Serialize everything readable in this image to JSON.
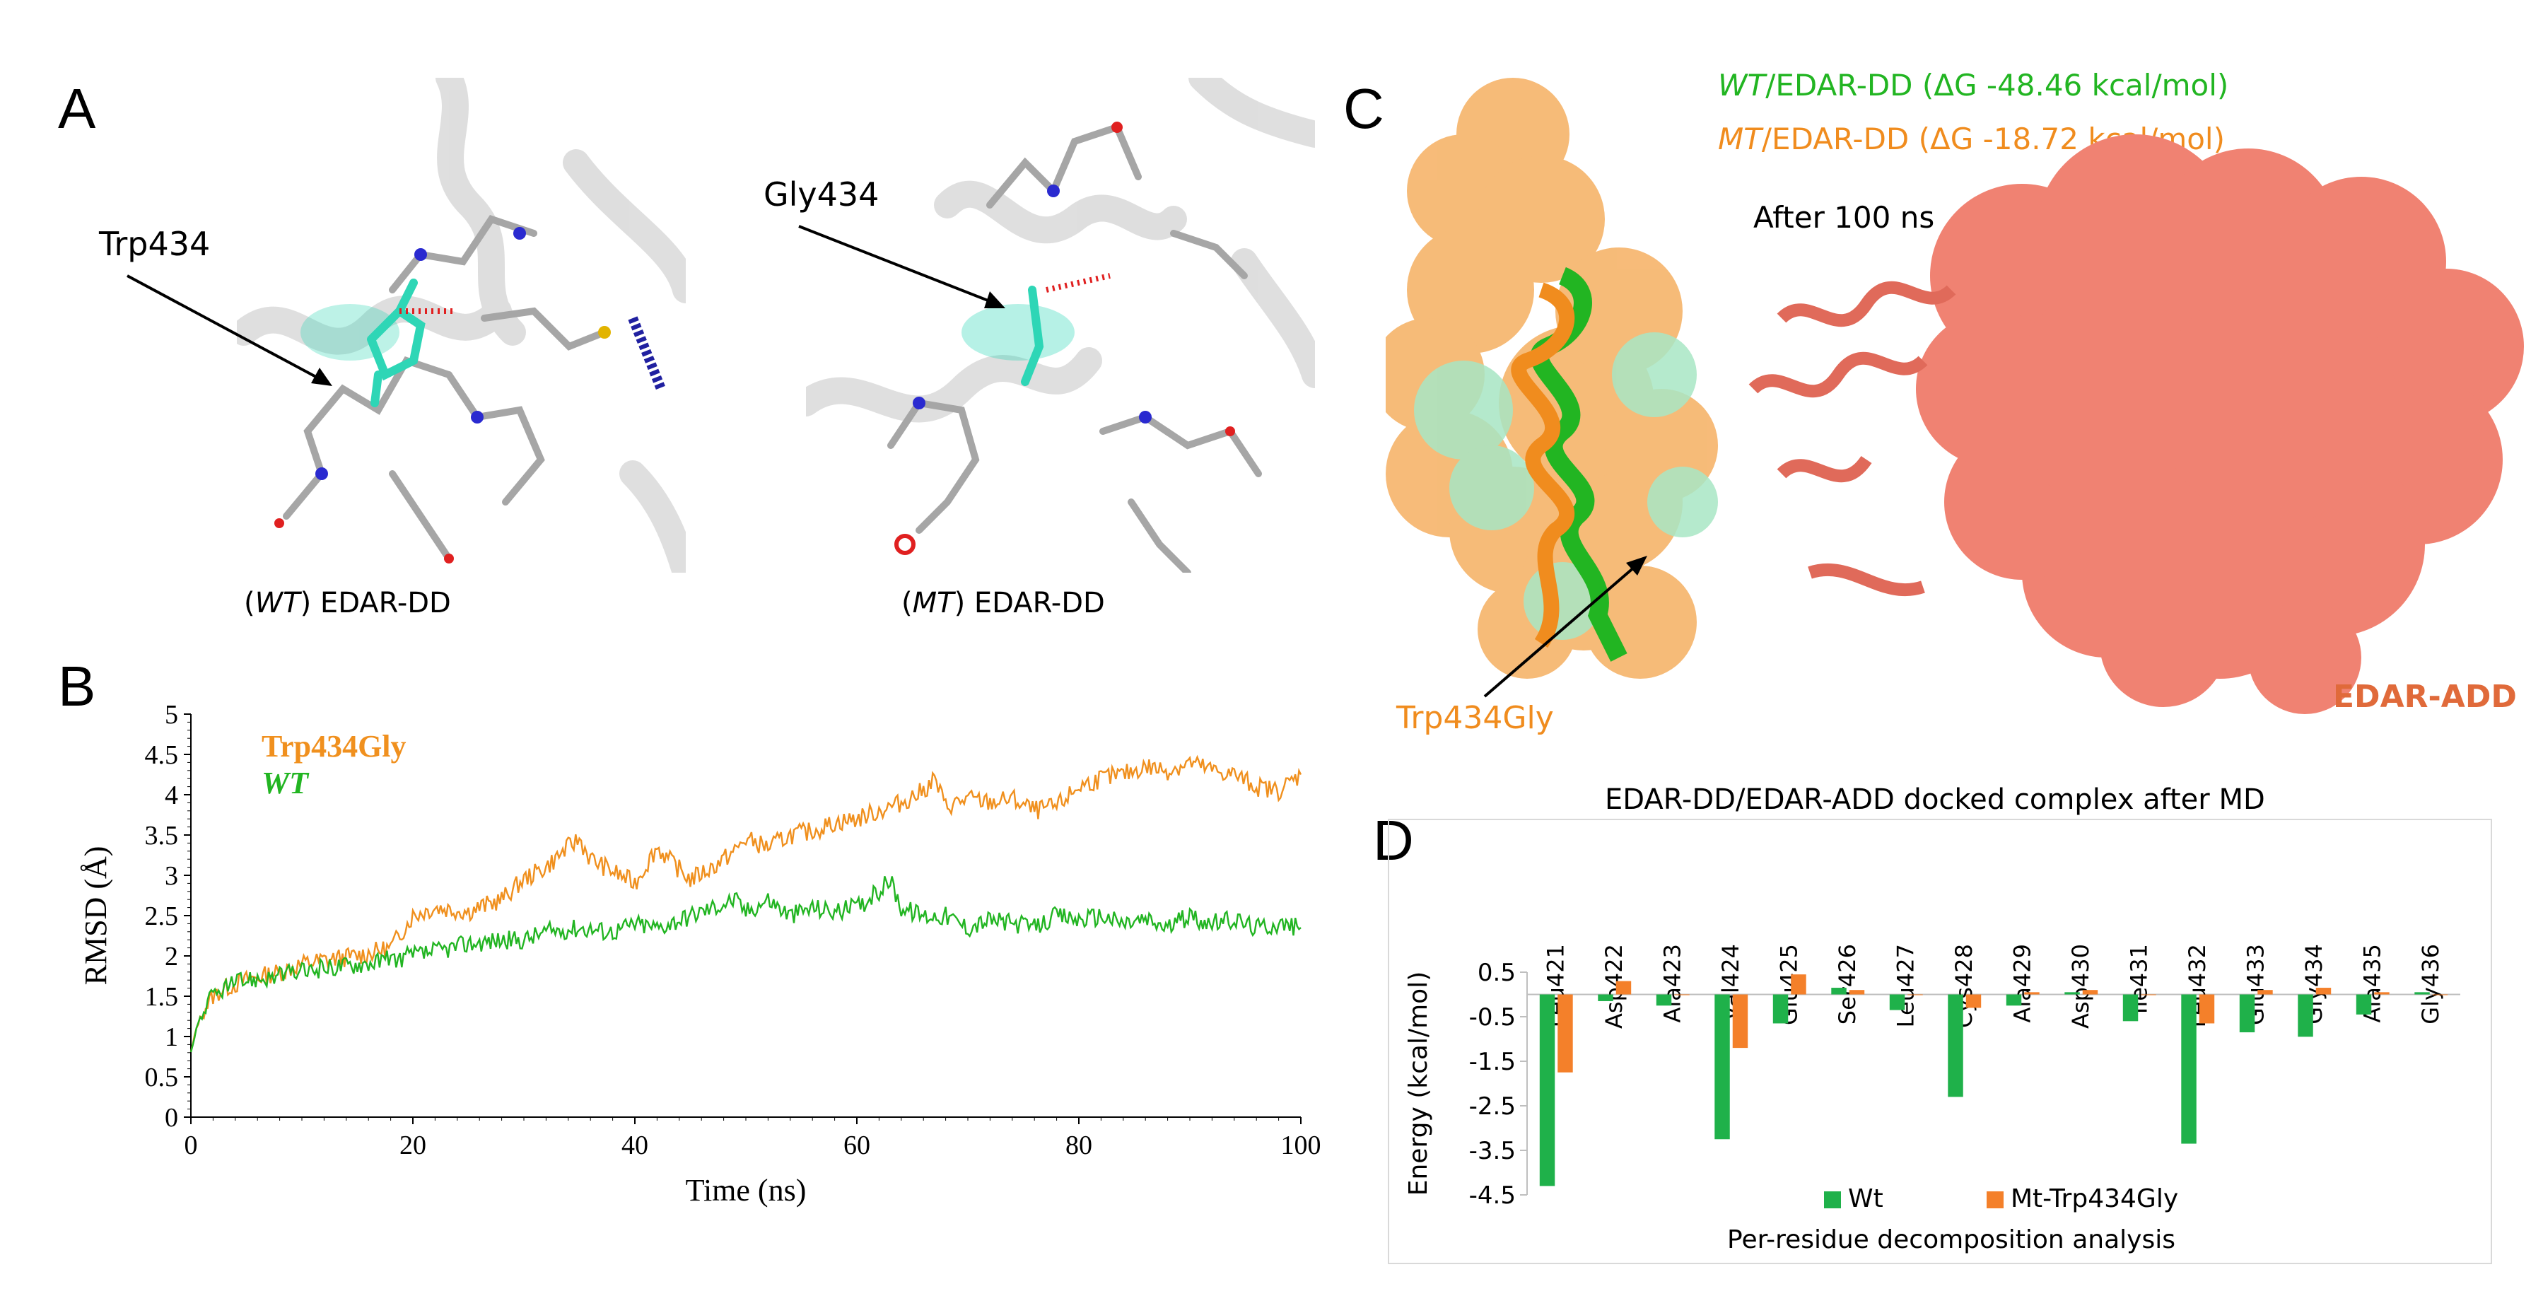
{
  "panel_letters": {
    "a": "A",
    "b": "B",
    "c": "C",
    "d": "D"
  },
  "panel_a": {
    "wt_callout": "Trp434",
    "mt_callout": "Gly434",
    "wt_caption_pre": "(",
    "wt_caption_italic": "WT",
    "wt_caption_post": ") EDAR-DD",
    "mt_caption_pre": "(",
    "mt_caption_italic": "MT",
    "mt_caption_post": ") EDAR-DD",
    "colors": {
      "cartoon": "#d9d9d9",
      "trp": "#2ed6b6",
      "carbon": "#a6a6a6",
      "nitrogen": "#2a2ad0",
      "oxygen": "#e02020",
      "hbond": "#e02020"
    }
  },
  "panel_c": {
    "wt_line_italic": "WT",
    "wt_line_rest": "/EDAR-DD (ΔG -48.46 kcal/mol)",
    "mt_line_italic": "MT",
    "mt_line_rest": "/EDAR-DD (ΔG -18.72 kcal/mol)",
    "after": "After 100 ns",
    "mutant_label": "Trp434Gly",
    "partner_label": "EDAR-ADD",
    "caption": "EDAR-DD/EDAR-ADD docked complex after MD",
    "colors": {
      "wt": "#22b522",
      "mt": "#f08c1e",
      "mint": "#a8e6c4",
      "add": "#f08272"
    }
  },
  "chart_data": [
    {
      "type": "line",
      "panel": "B",
      "xlabel": "Time (ns)",
      "ylabel": "RMSD (Å)",
      "xlim": [
        0,
        100
      ],
      "ylim": [
        0,
        5
      ],
      "x_ticks": [
        "0",
        "20",
        "40",
        "60",
        "80",
        "100"
      ],
      "y_ticks": [
        "0",
        "0.5",
        "1",
        "1.5",
        "2",
        "2.5",
        "3",
        "3.5",
        "4",
        "4.5",
        "5"
      ],
      "legend_position": "top-left",
      "series": [
        {
          "name": "Trp434Gly",
          "color": "#f0901e",
          "x": [
            0,
            0.5,
            1,
            2,
            3,
            5,
            8,
            10,
            12,
            15,
            18,
            20,
            22,
            25,
            28,
            30,
            32,
            34,
            35,
            36,
            38,
            40,
            42,
            43,
            45,
            47,
            49,
            50,
            52,
            54,
            56,
            58,
            60,
            62,
            64,
            66,
            67,
            68,
            70,
            72,
            74,
            76,
            78,
            80,
            82,
            84,
            86,
            88,
            90,
            92,
            94,
            96,
            98,
            100
          ],
          "y": [
            0.8,
            1.1,
            1.3,
            1.5,
            1.6,
            1.7,
            1.8,
            1.9,
            1.95,
            2.0,
            2.1,
            2.5,
            2.6,
            2.55,
            2.7,
            2.95,
            3.1,
            3.35,
            3.45,
            3.2,
            3.05,
            2.9,
            3.35,
            3.2,
            2.95,
            3.1,
            3.3,
            3.45,
            3.35,
            3.5,
            3.55,
            3.65,
            3.7,
            3.8,
            3.9,
            4.05,
            4.2,
            3.85,
            3.95,
            3.9,
            3.95,
            3.8,
            3.85,
            4.1,
            4.2,
            4.25,
            4.35,
            4.3,
            4.4,
            4.3,
            4.25,
            4.1,
            4.05,
            4.25
          ]
        },
        {
          "name": "WT",
          "color": "#22b522",
          "x": [
            0,
            0.5,
            1,
            2,
            3,
            5,
            8,
            10,
            12,
            15,
            18,
            20,
            22,
            25,
            28,
            30,
            32,
            35,
            38,
            40,
            42,
            45,
            47,
            49,
            50,
            52,
            54,
            56,
            58,
            60,
            62,
            63,
            64,
            66,
            68,
            70,
            72,
            74,
            76,
            78,
            80,
            82,
            84,
            86,
            88,
            90,
            92,
            94,
            96,
            98,
            100
          ],
          "y": [
            0.8,
            1.1,
            1.3,
            1.5,
            1.6,
            1.7,
            1.75,
            1.8,
            1.85,
            1.9,
            1.95,
            2.0,
            2.05,
            2.15,
            2.2,
            2.2,
            2.3,
            2.35,
            2.3,
            2.4,
            2.35,
            2.5,
            2.6,
            2.7,
            2.55,
            2.7,
            2.5,
            2.6,
            2.55,
            2.6,
            2.8,
            2.95,
            2.6,
            2.5,
            2.5,
            2.35,
            2.45,
            2.4,
            2.35,
            2.5,
            2.45,
            2.5,
            2.4,
            2.45,
            2.35,
            2.5,
            2.4,
            2.45,
            2.35,
            2.4,
            2.35
          ]
        }
      ]
    },
    {
      "type": "bar",
      "panel": "D",
      "title": "Per-residue decomposition analysis",
      "ylabel": "Energy (kcal/mol)",
      "ylim": [
        -4.5,
        0.5
      ],
      "y_ticks": [
        "0.5",
        "-0.5",
        "-1.5",
        "-2.5",
        "-3.5",
        "-4.5"
      ],
      "legend_position": "bottom",
      "categories": [
        "Leu421",
        "Asp422",
        "Ala423",
        "Val424",
        "Glu425",
        "Ser426",
        "Leu427",
        "Cys428",
        "Ala429",
        "Asp430",
        "Ile431",
        "Leu432",
        "Glu433",
        "Gly434",
        "Ala435",
        "Gly436"
      ],
      "series": [
        {
          "name": "Wt",
          "color": "#1fb14a",
          "values": [
            -4.3,
            -0.15,
            -0.25,
            -3.25,
            -0.65,
            0.15,
            -0.35,
            -2.3,
            -0.25,
            0.05,
            -0.6,
            -3.35,
            -0.85,
            -0.95,
            -0.45,
            0.05
          ]
        },
        {
          "name": "Mt-Trp434Gly",
          "color": "#f4802a",
          "values": [
            -1.75,
            0.3,
            0.0,
            -1.2,
            0.45,
            0.1,
            0.0,
            -0.3,
            0.05,
            0.1,
            0.0,
            -0.65,
            0.1,
            0.15,
            0.05,
            0.0
          ]
        }
      ]
    }
  ]
}
